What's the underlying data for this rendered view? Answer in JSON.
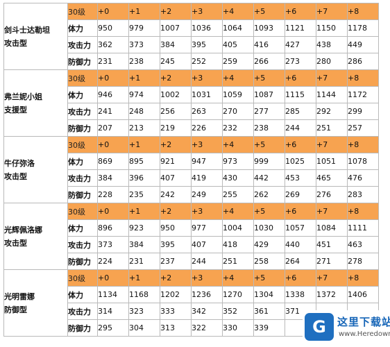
{
  "header_row": {
    "level_label": "30级",
    "levels": [
      "+0",
      "+1",
      "+2",
      "+3",
      "+4",
      "+5",
      "+6",
      "+7",
      "+8"
    ]
  },
  "row_labels": {
    "hp": "体力",
    "atk": "攻击力",
    "def": "防御力"
  },
  "characters": [
    {
      "name": "剑斗士达勒坦",
      "type": "攻击型",
      "hp": [
        950,
        979,
        1007,
        1036,
        1064,
        1093,
        1121,
        1150,
        1178
      ],
      "atk": [
        362,
        373,
        384,
        395,
        405,
        416,
        427,
        438,
        449
      ],
      "def": [
        231,
        238,
        245,
        252,
        259,
        266,
        273,
        280,
        286
      ]
    },
    {
      "name": "弗兰妮小姐",
      "type": "支援型",
      "hp": [
        946,
        974,
        1002,
        1031,
        1059,
        1087,
        1115,
        1144,
        1172
      ],
      "atk": [
        241,
        248,
        256,
        263,
        270,
        277,
        285,
        292,
        299
      ],
      "def": [
        207,
        213,
        219,
        226,
        232,
        238,
        244,
        251,
        257
      ]
    },
    {
      "name": "牛仔弥洛",
      "type": "攻击型",
      "hp": [
        869,
        895,
        921,
        947,
        973,
        999,
        1025,
        1051,
        1078
      ],
      "atk": [
        384,
        396,
        407,
        419,
        430,
        442,
        453,
        465,
        476
      ],
      "def": [
        228,
        235,
        242,
        249,
        255,
        262,
        269,
        276,
        283
      ]
    },
    {
      "name": "光辉佩洛娜",
      "type": "攻击型",
      "hp": [
        896,
        923,
        950,
        977,
        1004,
        1030,
        1057,
        1084,
        1111
      ],
      "atk": [
        373,
        384,
        395,
        407,
        418,
        429,
        440,
        451,
        463
      ],
      "def": [
        224,
        231,
        237,
        244,
        251,
        258,
        264,
        271,
        278
      ]
    },
    {
      "name": "光明雷娜",
      "type": "防御型",
      "hp": [
        1134,
        1168,
        1202,
        1236,
        1270,
        1304,
        1338,
        1372,
        1406
      ],
      "atk": [
        314,
        323,
        333,
        342,
        352,
        361,
        371,
        "",
        ""
      ],
      "def": [
        295,
        304,
        313,
        322,
        330,
        339,
        "",
        "",
        ""
      ]
    }
  ],
  "watermark": {
    "site": "这里下载站",
    "url": "www.Heredown.com",
    "logo_glyph": "G"
  }
}
